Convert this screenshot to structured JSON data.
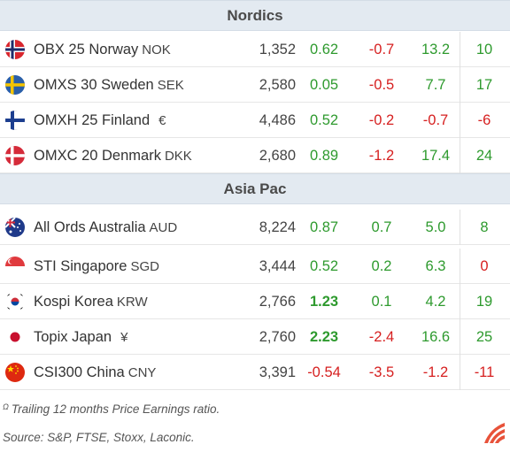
{
  "sections": [
    {
      "title": "Nordics",
      "rows": [
        {
          "name": "OBX 25 Norway",
          "currency": "NOK",
          "flag": "norway-flag",
          "price": "1,352",
          "c1": "0.62",
          "c2": "-0.7",
          "c3": "13.2",
          "c4": "10"
        },
        {
          "name": "OMXS 30 Sweden",
          "currency": "SEK",
          "flag": "sweden-flag",
          "price": "2,580",
          "c1": "0.05",
          "c2": "-0.5",
          "c3": "7.7",
          "c4": "17"
        },
        {
          "name": "OMXH 25 Finland",
          "currency": "€",
          "flag": "finland-flag",
          "price": "4,486",
          "c1": "0.52",
          "c2": "-0.2",
          "c3": "-0.7",
          "c4": "-6"
        },
        {
          "name": "OMXC 20 Denmark",
          "currency": "DKK",
          "flag": "denmark-flag",
          "price": "2,680",
          "c1": "0.89",
          "c2": "-1.2",
          "c3": "17.4",
          "c4": "24"
        }
      ]
    },
    {
      "title": "Asia Pac",
      "rows": [
        {
          "name": "All Ords Australia",
          "currency": "AUD",
          "flag": "australia-flag",
          "price": "8,224",
          "c1": "0.87",
          "c2": "0.7",
          "c3": "5.0",
          "c4": "8"
        },
        {
          "name": "STI Singapore",
          "currency": "SGD",
          "flag": "singapore-flag",
          "price": "3,444",
          "c1": "0.52",
          "c2": "0.2",
          "c3": "6.3",
          "c4": "0"
        },
        {
          "name": "Kospi Korea",
          "currency": "KRW",
          "flag": "korea-flag",
          "price": "2,766",
          "c1": "1.23",
          "c2": "0.1",
          "c3": "4.2",
          "c4": "19"
        },
        {
          "name": "Topix Japan",
          "currency": "¥",
          "flag": "japan-flag",
          "price": "2,760",
          "c1": "2.23",
          "c2": "-2.4",
          "c3": "16.6",
          "c4": "25"
        },
        {
          "name": "CSI300 China",
          "currency": "CNY",
          "flag": "china-flag",
          "price": "3,391",
          "c1": "-0.54",
          "c2": "-3.5",
          "c3": "-1.2",
          "c4": "-11"
        }
      ]
    }
  ],
  "footnote": {
    "marker": "Ω",
    "text": "Trailing 12 months Price Earnings ratio."
  },
  "source": "Source: S&P, FTSE, Stoxx, Laconic.",
  "colors": {
    "positive": "#2e9a2e",
    "negative": "#d61f1f",
    "header_bg": "#e3eaf1",
    "logo": "#e8523a"
  },
  "logo_icon": "laconic-logo-icon"
}
